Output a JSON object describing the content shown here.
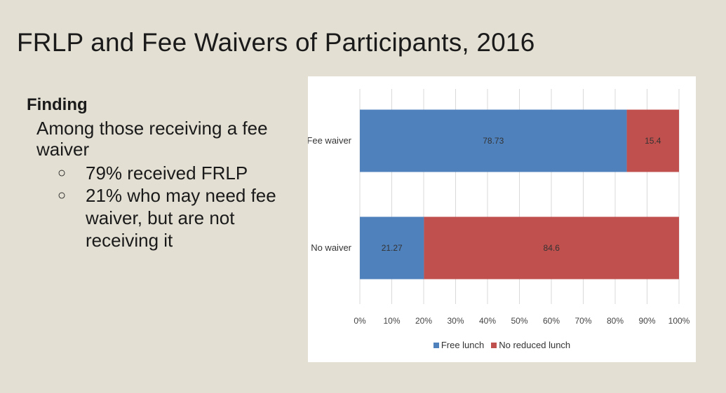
{
  "slide": {
    "title": "FRLP and Fee Waivers of Participants, 2016",
    "finding_heading": "Finding",
    "finding_intro": "Among those receiving a fee waiver",
    "bullets": [
      "79% received FRLP",
      "21% who may need fee waiver, but are not receiving it"
    ],
    "bullet_marker": "○"
  },
  "chart_data": {
    "type": "bar",
    "orientation": "horizontal",
    "stacked": "percent",
    "categories": [
      "Fee waiver",
      "No waiver"
    ],
    "series": [
      {
        "name": "Free lunch",
        "values": [
          78.73,
          21.27
        ],
        "color": "#4f81bd"
      },
      {
        "name": "No reduced lunch",
        "values": [
          15.4,
          84.6
        ],
        "color": "#c0504d"
      }
    ],
    "xticks": [
      "0%",
      "10%",
      "20%",
      "30%",
      "40%",
      "50%",
      "60%",
      "70%",
      "80%",
      "90%",
      "100%"
    ],
    "xlim": [
      0,
      100
    ],
    "grid": true,
    "legend": "bottom"
  }
}
